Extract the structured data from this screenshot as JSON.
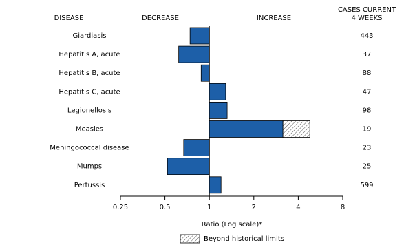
{
  "chart_data": {
    "type": "bar",
    "headers": {
      "disease": "DISEASE",
      "decrease": "DECREASE",
      "increase": "INCREASE",
      "cases": [
        "CASES CURRENT",
        "4 WEEKS"
      ]
    },
    "categories": [
      "Giardiasis",
      "Hepatitis A, acute",
      "Hepatitis B, acute",
      "Hepatitis C, acute",
      "Legionellosis",
      "Measles",
      "Meningococcal disease",
      "Mumps",
      "Pertussis"
    ],
    "series": [
      {
        "color": "#1d5fa8",
        "values": [
          0.74,
          0.62,
          0.88,
          1.29,
          1.32,
          3.15,
          0.67,
          0.52,
          1.2
        ]
      },
      {
        "name": "Beyond historical limits",
        "color": "#ffffff",
        "pattern": "hatch",
        "values": [
          null,
          null,
          null,
          null,
          null,
          4.79,
          null,
          null,
          null
        ]
      }
    ],
    "cases": [
      443,
      37,
      88,
      47,
      98,
      19,
      23,
      25,
      599
    ],
    "xlabel": "Ratio (Log scale)*",
    "log_scale": true,
    "base": 1,
    "xlim": [
      0.25,
      8
    ],
    "xticks": [
      0.25,
      0.5,
      1,
      2,
      4,
      8
    ]
  }
}
